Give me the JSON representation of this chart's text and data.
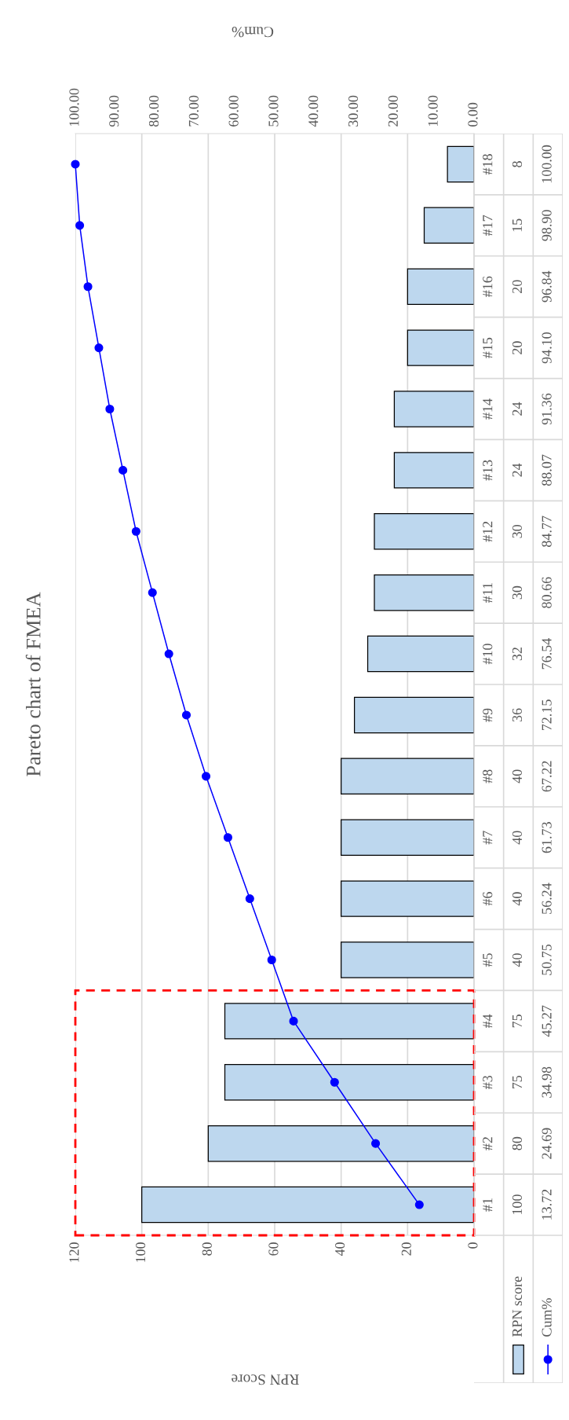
{
  "chart_data": {
    "type": "bar",
    "orientation": "horizontal",
    "title": "Pareto chart of FMEA",
    "annotations": [
      "RPN Score"
    ],
    "x2label": "Cum%",
    "categories": [
      "#18",
      "#17",
      "#16",
      "#15",
      "#14",
      "#13",
      "#12",
      "#11",
      "#10",
      "#9",
      "#8",
      "#7",
      "#6",
      "#5",
      "#4",
      "#3",
      "#2",
      "#1"
    ],
    "series": [
      {
        "name": "RPN score",
        "color": "#bdd7ee",
        "values": [
          8,
          15,
          20,
          20,
          24,
          24,
          30,
          30,
          32,
          36,
          40,
          40,
          40,
          40,
          75,
          75,
          80,
          100
        ]
      },
      {
        "name": "Cum%",
        "type": "line",
        "axis": "x2",
        "color": "#0000ff",
        "marker": "circle",
        "values": [
          100.0,
          98.9,
          96.84,
          94.1,
          91.36,
          88.07,
          84.77,
          80.66,
          76.54,
          72.15,
          67.22,
          61.73,
          56.24,
          50.75,
          45.27,
          34.98,
          24.69,
          13.72
        ],
        "value_labels": [
          "100.00",
          "98.90",
          "96.84",
          "94.10",
          "91.36",
          "88.07",
          "84.77",
          "80.66",
          "76.54",
          "72.15",
          "67.22",
          "61.73",
          "56.24",
          "50.75",
          "45.27",
          "34.98",
          "24.69",
          "13.72"
        ]
      }
    ],
    "xlim": [
      120,
      0
    ],
    "xticks": [
      120,
      100,
      80,
      60,
      40,
      20,
      0
    ],
    "x2lim": [
      100,
      0
    ],
    "x2ticks": [
      {
        "value": 100,
        "label": "100.00"
      },
      {
        "value": 90,
        "label": "90.00"
      },
      {
        "value": 80,
        "label": "80.00"
      },
      {
        "value": 70,
        "label": "70.00"
      },
      {
        "value": 60,
        "label": "60.00"
      },
      {
        "value": 50,
        "label": "50.00"
      },
      {
        "value": 40,
        "label": "40.00"
      },
      {
        "value": 30,
        "label": "30.00"
      },
      {
        "value": 20,
        "label": "20.00"
      },
      {
        "value": 10,
        "label": "10.00"
      },
      {
        "value": 0,
        "label": "0.00"
      }
    ],
    "grid": "x",
    "data_labels": true,
    "legend": "right"
  }
}
